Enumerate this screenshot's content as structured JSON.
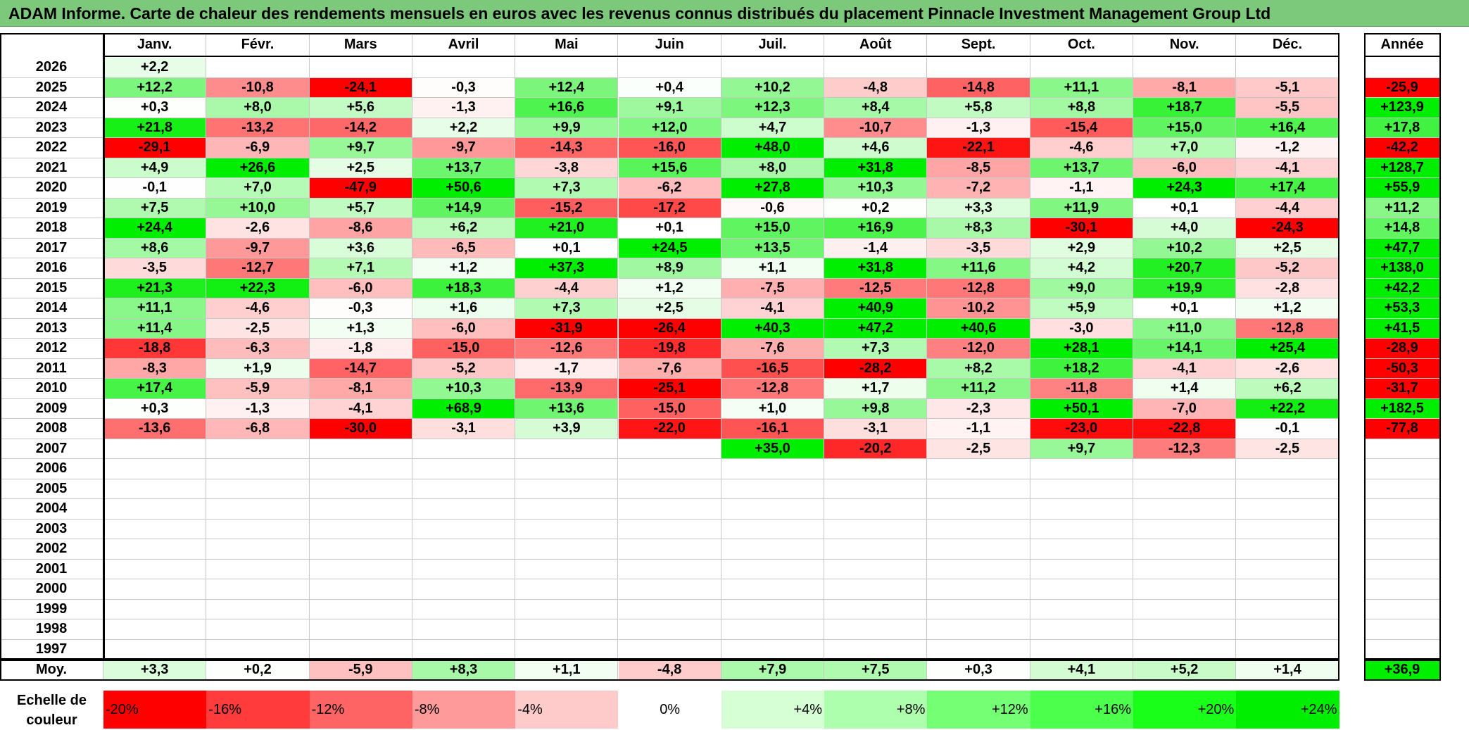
{
  "title": "ADAM Informe. Carte de chaleur des rendements mensuels en euros avec les revenus connus distribués du placement Pinnacle Investment Management Group Ltd",
  "chart_data": {
    "type": "heatmap",
    "columns": [
      "Janv.",
      "Févr.",
      "Mars",
      "Avril",
      "Mai",
      "Juin",
      "Juil.",
      "Août",
      "Sept.",
      "Oct.",
      "Nov.",
      "Déc."
    ],
    "year_column_label": "Année",
    "avg_row_label": "Moy.",
    "rows": [
      {
        "year": "2026",
        "months": [
          "+2,2",
          "",
          "",
          "",
          "",
          "",
          "",
          "",
          "",
          "",
          "",
          ""
        ],
        "annual": ""
      },
      {
        "year": "2025",
        "months": [
          "+12,2",
          "-10,8",
          "-24,1",
          "-0,3",
          "+12,4",
          "+0,4",
          "+10,2",
          "-4,8",
          "-14,8",
          "+11,1",
          "-8,1",
          "-5,1"
        ],
        "annual": "-25,9"
      },
      {
        "year": "2024",
        "months": [
          "+0,3",
          "+8,0",
          "+5,6",
          "-1,3",
          "+16,6",
          "+9,1",
          "+12,3",
          "+8,4",
          "+5,8",
          "+8,8",
          "+18,7",
          "-5,5"
        ],
        "annual": "+123,9"
      },
      {
        "year": "2023",
        "months": [
          "+21,8",
          "-13,2",
          "-14,2",
          "+2,2",
          "+9,9",
          "+12,0",
          "+4,7",
          "-10,7",
          "-1,3",
          "-15,4",
          "+15,0",
          "+16,4"
        ],
        "annual": "+17,8"
      },
      {
        "year": "2022",
        "months": [
          "-29,1",
          "-6,9",
          "+9,7",
          "-9,7",
          "-14,3",
          "-16,0",
          "+48,0",
          "+4,6",
          "-22,1",
          "-4,6",
          "+7,0",
          "-1,2"
        ],
        "annual": "-42,2"
      },
      {
        "year": "2021",
        "months": [
          "+4,9",
          "+26,6",
          "+2,5",
          "+13,7",
          "-3,8",
          "+15,6",
          "+8,0",
          "+31,8",
          "-8,5",
          "+13,7",
          "-6,0",
          "-4,1"
        ],
        "annual": "+128,7"
      },
      {
        "year": "2020",
        "months": [
          "-0,1",
          "+7,0",
          "-47,9",
          "+50,6",
          "+7,3",
          "-6,2",
          "+27,8",
          "+10,3",
          "-7,2",
          "-1,1",
          "+24,3",
          "+17,4"
        ],
        "annual": "+55,9"
      },
      {
        "year": "2019",
        "months": [
          "+7,5",
          "+10,0",
          "+5,7",
          "+14,9",
          "-15,2",
          "-17,2",
          "-0,6",
          "+0,2",
          "+3,3",
          "+11,9",
          "+0,1",
          "-4,4"
        ],
        "annual": "+11,2"
      },
      {
        "year": "2018",
        "months": [
          "+24,4",
          "-2,6",
          "-8,6",
          "+6,2",
          "+21,0",
          "+0,1",
          "+15,0",
          "+16,9",
          "+8,3",
          "-30,1",
          "+4,0",
          "-24,3"
        ],
        "annual": "+14,8"
      },
      {
        "year": "2017",
        "months": [
          "+8,6",
          "-9,7",
          "+3,6",
          "-6,5",
          "+0,1",
          "+24,5",
          "+13,5",
          "-1,4",
          "-3,5",
          "+2,9",
          "+10,2",
          "+2,5"
        ],
        "annual": "+47,7"
      },
      {
        "year": "2016",
        "months": [
          "-3,5",
          "-12,7",
          "+7,1",
          "+1,2",
          "+37,3",
          "+8,9",
          "+1,1",
          "+31,8",
          "+11,6",
          "+4,2",
          "+20,7",
          "-5,2"
        ],
        "annual": "+138,0"
      },
      {
        "year": "2015",
        "months": [
          "+21,3",
          "+22,3",
          "-6,0",
          "+18,3",
          "-4,4",
          "+1,2",
          "-7,5",
          "-12,5",
          "-12,8",
          "+9,0",
          "+19,9",
          "-2,8"
        ],
        "annual": "+42,2"
      },
      {
        "year": "2014",
        "months": [
          "+11,1",
          "-4,6",
          "-0,3",
          "+1,6",
          "+7,3",
          "+2,5",
          "-4,1",
          "+40,9",
          "-10,2",
          "+5,9",
          "+0,1",
          "+1,2"
        ],
        "annual": "+53,3"
      },
      {
        "year": "2013",
        "months": [
          "+11,4",
          "-2,5",
          "+1,3",
          "-6,0",
          "-31,9",
          "-26,4",
          "+40,3",
          "+47,2",
          "+40,6",
          "-3,0",
          "+11,0",
          "-12,8"
        ],
        "annual": "+41,5"
      },
      {
        "year": "2012",
        "months": [
          "-18,8",
          "-6,3",
          "-1,8",
          "-15,0",
          "-12,6",
          "-19,8",
          "-7,6",
          "+7,3",
          "-12,0",
          "+28,1",
          "+14,1",
          "+25,4"
        ],
        "annual": "-28,9"
      },
      {
        "year": "2011",
        "months": [
          "-8,3",
          "+1,9",
          "-14,7",
          "-5,2",
          "-1,7",
          "-7,6",
          "-16,5",
          "-28,2",
          "+8,2",
          "+18,2",
          "-4,1",
          "-2,6"
        ],
        "annual": "-50,3"
      },
      {
        "year": "2010",
        "months": [
          "+17,4",
          "-5,9",
          "-8,1",
          "+10,3",
          "-13,9",
          "-25,1",
          "-12,8",
          "+1,7",
          "+11,2",
          "-11,8",
          "+1,4",
          "+6,2"
        ],
        "annual": "-31,7"
      },
      {
        "year": "2009",
        "months": [
          "+0,3",
          "-1,3",
          "-4,1",
          "+68,9",
          "+13,6",
          "-15,0",
          "+1,0",
          "+9,8",
          "-2,3",
          "+50,1",
          "-7,0",
          "+22,2"
        ],
        "annual": "+182,5"
      },
      {
        "year": "2008",
        "months": [
          "-13,6",
          "-6,8",
          "-30,0",
          "-3,1",
          "+3,9",
          "-22,0",
          "-16,1",
          "-3,1",
          "-1,1",
          "-23,0",
          "-22,8",
          "-0,1"
        ],
        "annual": "-77,8"
      },
      {
        "year": "2007",
        "months": [
          "",
          "",
          "",
          "",
          "",
          "",
          "+35,0",
          "-20,2",
          "-2,5",
          "+9,7",
          "-12,3",
          "-2,5"
        ],
        "annual": ""
      },
      {
        "year": "2006",
        "months": [
          "",
          "",
          "",
          "",
          "",
          "",
          "",
          "",
          "",
          "",
          "",
          ""
        ],
        "annual": ""
      },
      {
        "year": "2005",
        "months": [
          "",
          "",
          "",
          "",
          "",
          "",
          "",
          "",
          "",
          "",
          "",
          ""
        ],
        "annual": ""
      },
      {
        "year": "2004",
        "months": [
          "",
          "",
          "",
          "",
          "",
          "",
          "",
          "",
          "",
          "",
          "",
          ""
        ],
        "annual": ""
      },
      {
        "year": "2003",
        "months": [
          "",
          "",
          "",
          "",
          "",
          "",
          "",
          "",
          "",
          "",
          "",
          ""
        ],
        "annual": ""
      },
      {
        "year": "2002",
        "months": [
          "",
          "",
          "",
          "",
          "",
          "",
          "",
          "",
          "",
          "",
          "",
          ""
        ],
        "annual": ""
      },
      {
        "year": "2001",
        "months": [
          "",
          "",
          "",
          "",
          "",
          "",
          "",
          "",
          "",
          "",
          "",
          ""
        ],
        "annual": ""
      },
      {
        "year": "2000",
        "months": [
          "",
          "",
          "",
          "",
          "",
          "",
          "",
          "",
          "",
          "",
          "",
          ""
        ],
        "annual": ""
      },
      {
        "year": "1999",
        "months": [
          "",
          "",
          "",
          "",
          "",
          "",
          "",
          "",
          "",
          "",
          "",
          ""
        ],
        "annual": ""
      },
      {
        "year": "1998",
        "months": [
          "",
          "",
          "",
          "",
          "",
          "",
          "",
          "",
          "",
          "",
          "",
          ""
        ],
        "annual": ""
      },
      {
        "year": "1997",
        "months": [
          "",
          "",
          "",
          "",
          "",
          "",
          "",
          "",
          "",
          "",
          "",
          ""
        ],
        "annual": ""
      }
    ],
    "averages": {
      "months": [
        "+3,3",
        "+0,2",
        "-5,9",
        "+8,3",
        "+1,1",
        "-4,8",
        "+7,9",
        "+7,5",
        "+0,3",
        "+4,1",
        "+5,2",
        "+1,4"
      ],
      "annual": "+36,9"
    },
    "color_scale": {
      "label": "Echelle de couleur",
      "entries": [
        {
          "label": "-20%",
          "color": "#ff0000"
        },
        {
          "label": "-16%",
          "color": "#ff3b3b"
        },
        {
          "label": "-12%",
          "color": "#ff6464"
        },
        {
          "label": "-8%",
          "color": "#ff9a9a"
        },
        {
          "label": "-4%",
          "color": "#ffcaca"
        },
        {
          "label": "0%",
          "color": "#ffffff"
        },
        {
          "label": "+4%",
          "color": "#d6ffd6"
        },
        {
          "label": "+8%",
          "color": "#adffad"
        },
        {
          "label": "+12%",
          "color": "#75ff75"
        },
        {
          "label": "+16%",
          "color": "#4dff4d"
        },
        {
          "label": "+20%",
          "color": "#1aff1a"
        },
        {
          "label": "+24%",
          "color": "#00ee00"
        }
      ]
    }
  }
}
